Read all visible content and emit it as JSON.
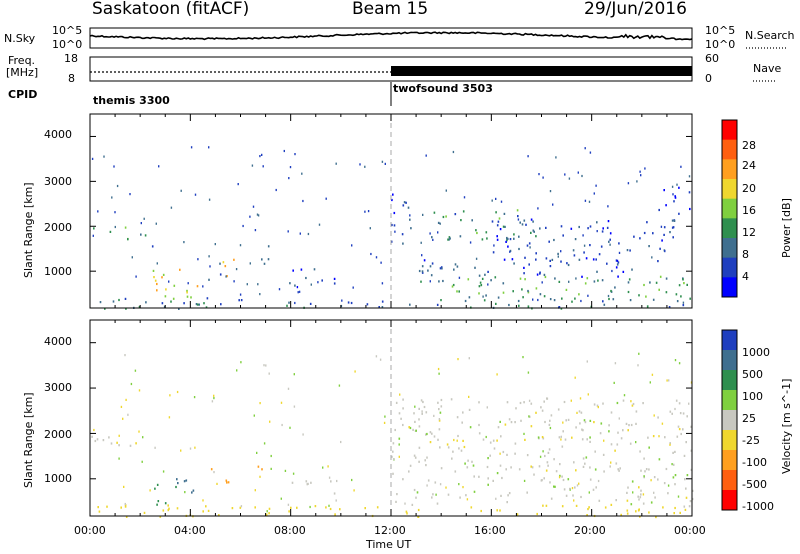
{
  "header": {
    "station": "Saskatoon (fitACF)",
    "beam": "Beam 15",
    "date": "29/Jun/2016"
  },
  "strip_top": {
    "left_label": "N.Sky",
    "left_ticks": [
      "10^5",
      "10^0"
    ],
    "right_label": "N.Search",
    "right_ticks": [
      "10^5",
      "10^0"
    ]
  },
  "strip_freq": {
    "left_label_1": "Freq.",
    "left_label_2": "[MHz]",
    "left_ticks": [
      "18",
      "8"
    ],
    "right_label": "Nave",
    "right_ticks": [
      "60",
      "0"
    ]
  },
  "cpid": {
    "label": "CPID",
    "programs": [
      {
        "name": "themis 3300",
        "start_hour": 0
      },
      {
        "name": "twofsound 3503",
        "start_hour": 12
      }
    ]
  },
  "colors": {
    "power": [
      "#0000ff",
      "#1f3fbf",
      "#3f6f8f",
      "#2f8f4f",
      "#7fcf3f",
      "#efd72f",
      "#ff9f1f",
      "#ff5f0f",
      "#ff0000"
    ],
    "velocity": [
      "#1f3fbf",
      "#3f6f8f",
      "#2f8f4f",
      "#7fcf3f",
      "#c8c8c0",
      "#efd72f",
      "#ff9f1f",
      "#ff5f0f",
      "#ff0000"
    ]
  },
  "chart_data": [
    {
      "type": "heatmap",
      "name": "power",
      "xlabel": "",
      "ylabel": "Slant Range [km]",
      "x_range_hours": [
        0,
        24
      ],
      "ylim_km": [
        180,
        4500
      ],
      "y_ticks": [
        1000,
        2000,
        3000,
        4000
      ],
      "colorbar_label": "Power [dB]",
      "colorbar_ticks": [
        "4",
        "8",
        "12",
        "16",
        "20",
        "24",
        "28"
      ],
      "clim": [
        0,
        32
      ],
      "regions": [
        {
          "t0": 0.0,
          "t1": 2.2,
          "r0": 1700,
          "r1": 2000,
          "level": 16
        },
        {
          "t0": 2.0,
          "t1": 2.6,
          "r0": 1500,
          "r1": 1700,
          "level": 8
        },
        {
          "t0": 2.4,
          "t1": 4.6,
          "r0": 400,
          "r1": 1100,
          "level": 22
        },
        {
          "t0": 4.6,
          "t1": 5.2,
          "r0": 800,
          "r1": 1300,
          "level": 12
        },
        {
          "t0": 5.0,
          "t1": 5.8,
          "r0": 900,
          "r1": 1400,
          "level": 24
        },
        {
          "t0": 6.6,
          "t1": 7.2,
          "r0": 1000,
          "r1": 1600,
          "level": 12
        },
        {
          "t0": 7.8,
          "t1": 9.8,
          "r0": 700,
          "r1": 1100,
          "level": 6
        },
        {
          "t0": 12.0,
          "t1": 13.0,
          "r0": 1600,
          "r1": 2800,
          "level": 6
        },
        {
          "t0": 12.3,
          "t1": 24.0,
          "r0": 400,
          "r1": 900,
          "level": 14
        },
        {
          "t0": 13.0,
          "t1": 22.0,
          "r0": 900,
          "r1": 1300,
          "level": 8
        },
        {
          "t0": 13.5,
          "t1": 18.0,
          "r0": 1700,
          "r1": 2400,
          "level": 12
        },
        {
          "t0": 16.0,
          "t1": 23.5,
          "r0": 1200,
          "r1": 2200,
          "level": 6
        },
        {
          "t0": 22.5,
          "t1": 24.0,
          "r0": 2300,
          "r1": 2900,
          "level": 6
        },
        {
          "t0": 0.0,
          "t1": 24.0,
          "r0": 180,
          "r1": 420,
          "level": 10
        }
      ]
    },
    {
      "type": "heatmap",
      "name": "velocity",
      "xlabel": "Time UT",
      "ylabel": "Slant Range [km]",
      "x_range_hours": [
        0,
        24
      ],
      "x_ticks": [
        "00:00",
        "04:00",
        "08:00",
        "12:00",
        "16:00",
        "20:00",
        "00:00"
      ],
      "ylim_km": [
        180,
        4500
      ],
      "y_ticks": [
        1000,
        2000,
        3000,
        4000
      ],
      "colorbar_label": "Velocity [m s^-1]",
      "colorbar_ticks": [
        "1000",
        "500",
        "100",
        "25",
        "-25",
        "-100",
        "-500",
        "-1000"
      ],
      "regions": [
        {
          "t0": 0.0,
          "t1": 2.2,
          "r0": 1600,
          "r1": 2000,
          "v": 0
        },
        {
          "t0": 2.4,
          "t1": 3.4,
          "r0": 400,
          "r1": 900,
          "v": 200
        },
        {
          "t0": 3.4,
          "t1": 4.4,
          "r0": 700,
          "r1": 1200,
          "v": 800
        },
        {
          "t0": 4.8,
          "t1": 5.5,
          "r0": 900,
          "r1": 1400,
          "v": -300
        },
        {
          "t0": 6.6,
          "t1": 7.1,
          "r0": 1100,
          "r1": 1500,
          "v": -300
        },
        {
          "t0": 7.8,
          "t1": 9.8,
          "r0": 700,
          "r1": 1000,
          "v": 0
        },
        {
          "t0": 12.0,
          "t1": 24.0,
          "r0": 400,
          "r1": 2800,
          "v": 0
        },
        {
          "t0": 0.0,
          "t1": 24.0,
          "r0": 180,
          "r1": 450,
          "v": -60
        }
      ]
    }
  ]
}
